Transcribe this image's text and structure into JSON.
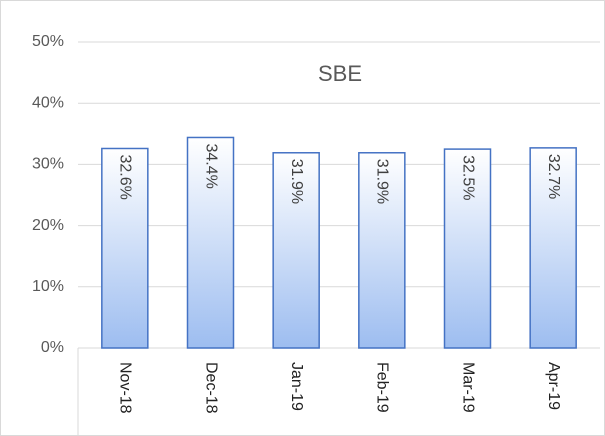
{
  "chart_data": {
    "type": "bar",
    "title": "SBE",
    "categories": [
      "Nov-18",
      "Dec-18",
      "Jan-19",
      "Feb-19",
      "Mar-19",
      "Apr-19"
    ],
    "values": [
      32.6,
      34.4,
      31.9,
      31.9,
      32.5,
      32.7
    ],
    "value_labels": [
      "32.6%",
      "34.4%",
      "31.9%",
      "31.9%",
      "32.5%",
      "32.7%"
    ],
    "color": "#4472c4",
    "ylim": [
      0,
      50
    ],
    "yticks": [
      {
        "value": 0,
        "label": "0%"
      },
      {
        "value": 10,
        "label": "10%"
      },
      {
        "value": 20,
        "label": "20%"
      },
      {
        "value": 30,
        "label": "30%"
      },
      {
        "value": 40,
        "label": "40%"
      },
      {
        "value": 50,
        "label": "50%"
      }
    ],
    "grid": true
  }
}
